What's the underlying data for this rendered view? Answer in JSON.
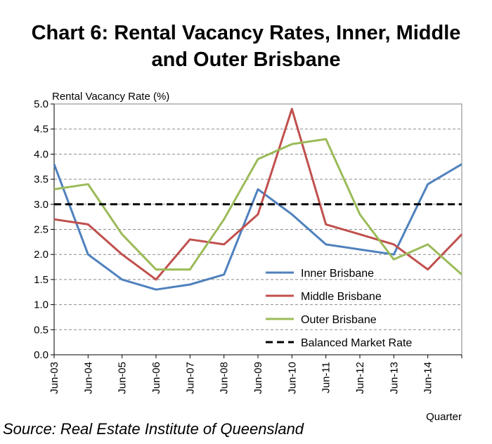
{
  "chart_data": {
    "type": "line",
    "title": "Chart 6: Rental Vacancy Rates, Inner, Middle and Outer Brisbane",
    "title_lines": [
      "Chart 6: Rental Vacancy Rates, Inner, Middle",
      "and Outer Brisbane"
    ],
    "ylabel": "Rental Vacancy Rate (%)",
    "xlabel": "Quarter",
    "ylim": [
      0,
      5
    ],
    "ytick_labels": [
      "0.0",
      "0.5",
      "1.0",
      "1.5",
      "2.0",
      "2.5",
      "3.0",
      "3.5",
      "4.0",
      "4.5",
      "5.0"
    ],
    "categories": [
      "Jun-03",
      "Jun-04",
      "Jun-05",
      "Jun-06",
      "Jun-07",
      "Jun-08",
      "Jun-09",
      "Jun-10",
      "Jun-11",
      "Jun-12",
      "Jun-13",
      "Jun-14",
      ""
    ],
    "x_tick_labels": [
      "Jun-03",
      "Jun-04",
      "Jun-05",
      "Jun-06",
      "Jun-07",
      "Jun-08",
      "Jun-09",
      "Jun-10",
      "Jun-11",
      "Jun-12",
      "Jun-13",
      "Jun-14"
    ],
    "series": [
      {
        "name": "Inner Brisbane",
        "color": "#4F81BD",
        "style": "solid",
        "values": [
          3.8,
          2.0,
          1.5,
          1.3,
          1.4,
          1.6,
          3.3,
          2.8,
          2.2,
          2.1,
          2.0,
          3.4,
          3.8
        ]
      },
      {
        "name": "Middle Brisbane",
        "color": "#C0504D",
        "style": "solid",
        "values": [
          2.7,
          2.6,
          2.0,
          1.5,
          2.3,
          2.2,
          2.8,
          4.9,
          2.6,
          2.4,
          2.2,
          1.7,
          2.4
        ]
      },
      {
        "name": "Outer Brisbane",
        "color": "#9BBB59",
        "style": "solid",
        "values": [
          3.3,
          3.4,
          2.4,
          1.7,
          1.7,
          2.7,
          3.9,
          4.2,
          4.3,
          2.8,
          1.9,
          2.2,
          1.6
        ]
      },
      {
        "name": "Balanced Market Rate",
        "color": "#000000",
        "style": "dashed",
        "values": [
          3.0,
          3.0,
          3.0,
          3.0,
          3.0,
          3.0,
          3.0,
          3.0,
          3.0,
          3.0,
          3.0,
          3.0,
          3.0
        ]
      }
    ],
    "grid": "horizontal dashed",
    "legend_position": "bottom-right inside"
  },
  "source": "Source: Real Estate Institute of Queensland"
}
